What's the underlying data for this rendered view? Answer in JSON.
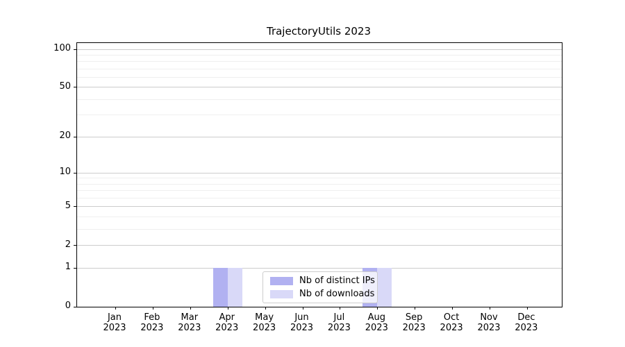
{
  "chart_data": {
    "type": "bar",
    "title": "TrajectoryUtils 2023",
    "categories": [
      "Jan",
      "Feb",
      "Mar",
      "Apr",
      "May",
      "Jun",
      "Jul",
      "Aug",
      "Sep",
      "Oct",
      "Nov",
      "Dec"
    ],
    "category_year": "2023",
    "series": [
      {
        "name": "Nb of distinct IPs",
        "color": "#b1b1f1",
        "values": [
          0,
          0,
          0,
          1,
          0,
          0,
          0,
          1,
          0,
          0,
          0,
          0
        ]
      },
      {
        "name": "Nb of downloads",
        "color": "#d9d9f8",
        "values": [
          0,
          0,
          0,
          1,
          0,
          0,
          0,
          1,
          0,
          0,
          0,
          0
        ]
      }
    ],
    "yscale": "log1p",
    "ylim": [
      0,
      112
    ],
    "y_ticks": [
      0,
      1,
      2,
      5,
      10,
      20,
      50,
      100
    ],
    "y_minor_gridlines": [
      3,
      4,
      6,
      7,
      8,
      9,
      30,
      40,
      60,
      70,
      80,
      90
    ],
    "grid": true,
    "legend_position": "lower center",
    "colors": {
      "axis": "#000000",
      "major_grid": "#cccccc",
      "minor_grid": "#efefef",
      "legend_border": "#cccccc"
    }
  }
}
